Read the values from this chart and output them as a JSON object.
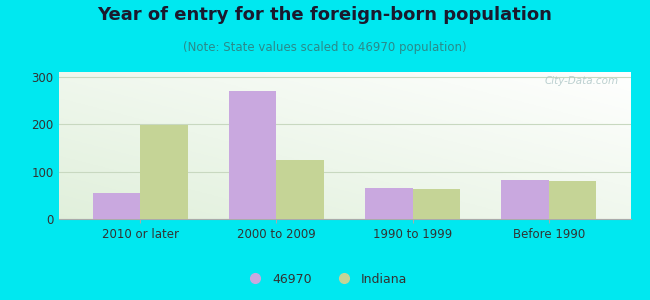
{
  "title": "Year of entry for the foreign-born population",
  "subtitle": "(Note: State values scaled to 46970 population)",
  "categories": [
    "2010 or later",
    "2000 to 2009",
    "1990 to 1999",
    "Before 1990"
  ],
  "series_46970": [
    55,
    270,
    65,
    82
  ],
  "series_indiana": [
    198,
    125,
    63,
    80
  ],
  "bar_color_46970": "#c9a8df",
  "bar_color_indiana": "#c5d496",
  "background_color": "#00e8f0",
  "ylim": [
    0,
    310
  ],
  "yticks": [
    0,
    100,
    200,
    300
  ],
  "legend_label_1": "46970",
  "legend_label_2": "Indiana",
  "bar_width": 0.35,
  "title_fontsize": 13,
  "subtitle_fontsize": 8.5,
  "tick_fontsize": 8.5,
  "legend_fontsize": 9,
  "title_color": "#1a1a2e",
  "subtitle_color": "#2a8a8a",
  "tick_color": "#333333",
  "watermark_color": "#b0c8c8"
}
